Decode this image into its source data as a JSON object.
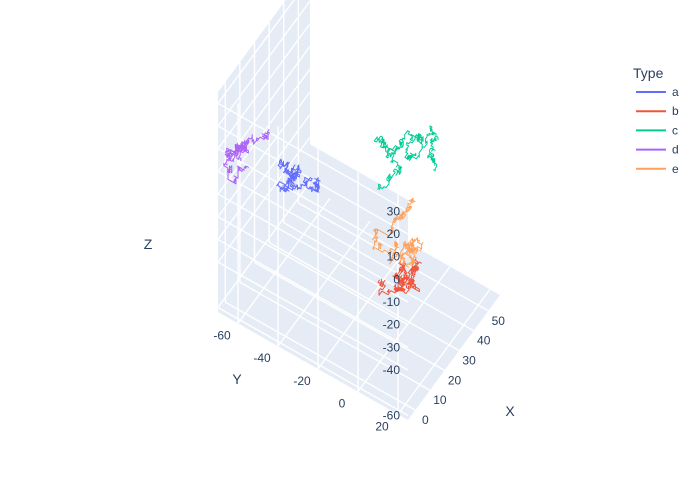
{
  "chart_data": {
    "type": "line3d",
    "legend_title": "Type",
    "legend_position": "top-right",
    "axes": {
      "x": {
        "label": "X",
        "ticks": [
          0,
          10,
          20,
          30,
          40,
          50
        ],
        "range": [
          -5,
          58
        ]
      },
      "y": {
        "label": "Y",
        "ticks": [
          -60,
          -40,
          -20,
          0,
          20
        ],
        "range": [
          -70,
          25
        ]
      },
      "z": {
        "label": "Z",
        "ticks": [
          -60,
          -40,
          -30,
          -20,
          -10,
          0,
          10,
          20,
          30
        ],
        "range": [
          -62,
          35
        ]
      }
    },
    "series": [
      {
        "name": "a",
        "color": "#636efa",
        "seed": 11,
        "start": [
          8,
          -40,
          5
        ],
        "steps": 380
      },
      {
        "name": "b",
        "color": "#EF553B",
        "seed": 23,
        "start": [
          22,
          -8,
          -42
        ],
        "steps": 420
      },
      {
        "name": "c",
        "color": "#00cc96",
        "seed": 37,
        "start": [
          30,
          -15,
          -10
        ],
        "steps": 420
      },
      {
        "name": "d",
        "color": "#ab63fa",
        "seed": 51,
        "start": [
          6,
          -55,
          12
        ],
        "steps": 380
      },
      {
        "name": "e",
        "color": "#FFA15A",
        "seed": 67,
        "start": [
          40,
          -5,
          -38
        ],
        "steps": 380
      }
    ]
  }
}
